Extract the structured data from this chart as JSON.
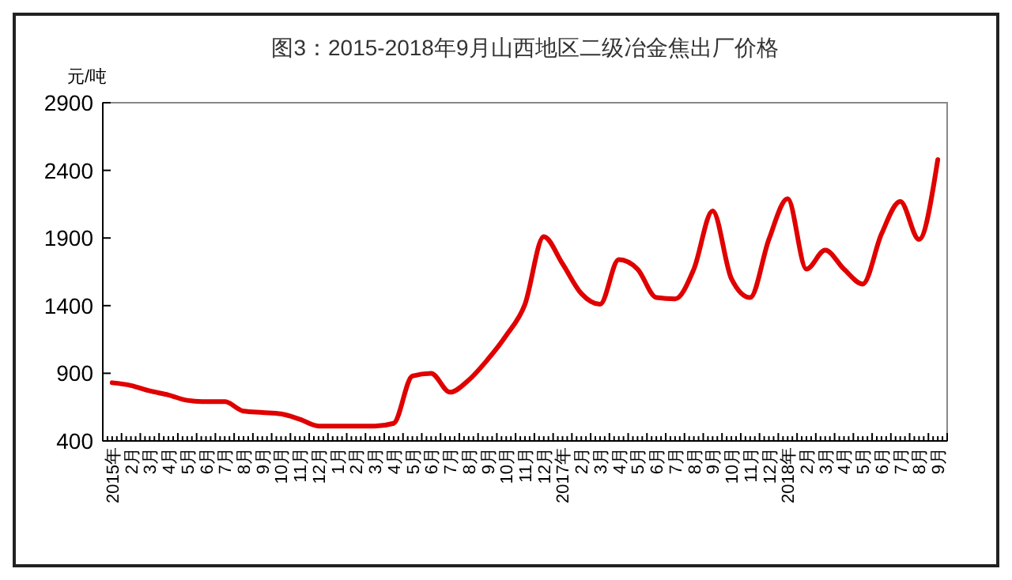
{
  "chart_data": {
    "type": "line",
    "title": "图3：2015-2018年9月山西地区二级冶金焦出厂价格",
    "ylabel": "元/吨",
    "categories": [
      "2015年",
      "2月",
      "3月",
      "4月",
      "5月",
      "6月",
      "7月",
      "8月",
      "9月",
      "10月",
      "11月",
      "12月",
      "1月",
      "2月",
      "3月",
      "4月",
      "5月",
      "6月",
      "7月",
      "8月",
      "9月",
      "10月",
      "11月",
      "12月",
      "2017年",
      "2月",
      "3月",
      "4月",
      "5月",
      "6月",
      "7月",
      "8月",
      "9月",
      "10月",
      "11月",
      "12月",
      "2018年",
      "2月",
      "3月",
      "4月",
      "5月",
      "6月",
      "7月",
      "8月",
      "9月"
    ],
    "series": [
      {
        "color": "#e00000",
        "values": [
          830,
          810,
          770,
          740,
          700,
          690,
          690,
          620,
          610,
          600,
          560,
          510,
          510,
          510,
          510,
          530,
          880,
          900,
          760,
          850,
          1000,
          1180,
          1410,
          1910,
          1710,
          1490,
          1410,
          1740,
          1670,
          1460,
          1450,
          1670,
          2100,
          1600,
          1460,
          1890,
          2190,
          1670,
          1810,
          1670,
          1560,
          1930,
          2170,
          1890,
          2480
        ]
      }
    ],
    "ylim": [
      400,
      2900
    ],
    "yticks": [
      400,
      900,
      1400,
      1900,
      2400,
      2900
    ],
    "grid": false,
    "marker": "none",
    "line_style": "solid"
  }
}
